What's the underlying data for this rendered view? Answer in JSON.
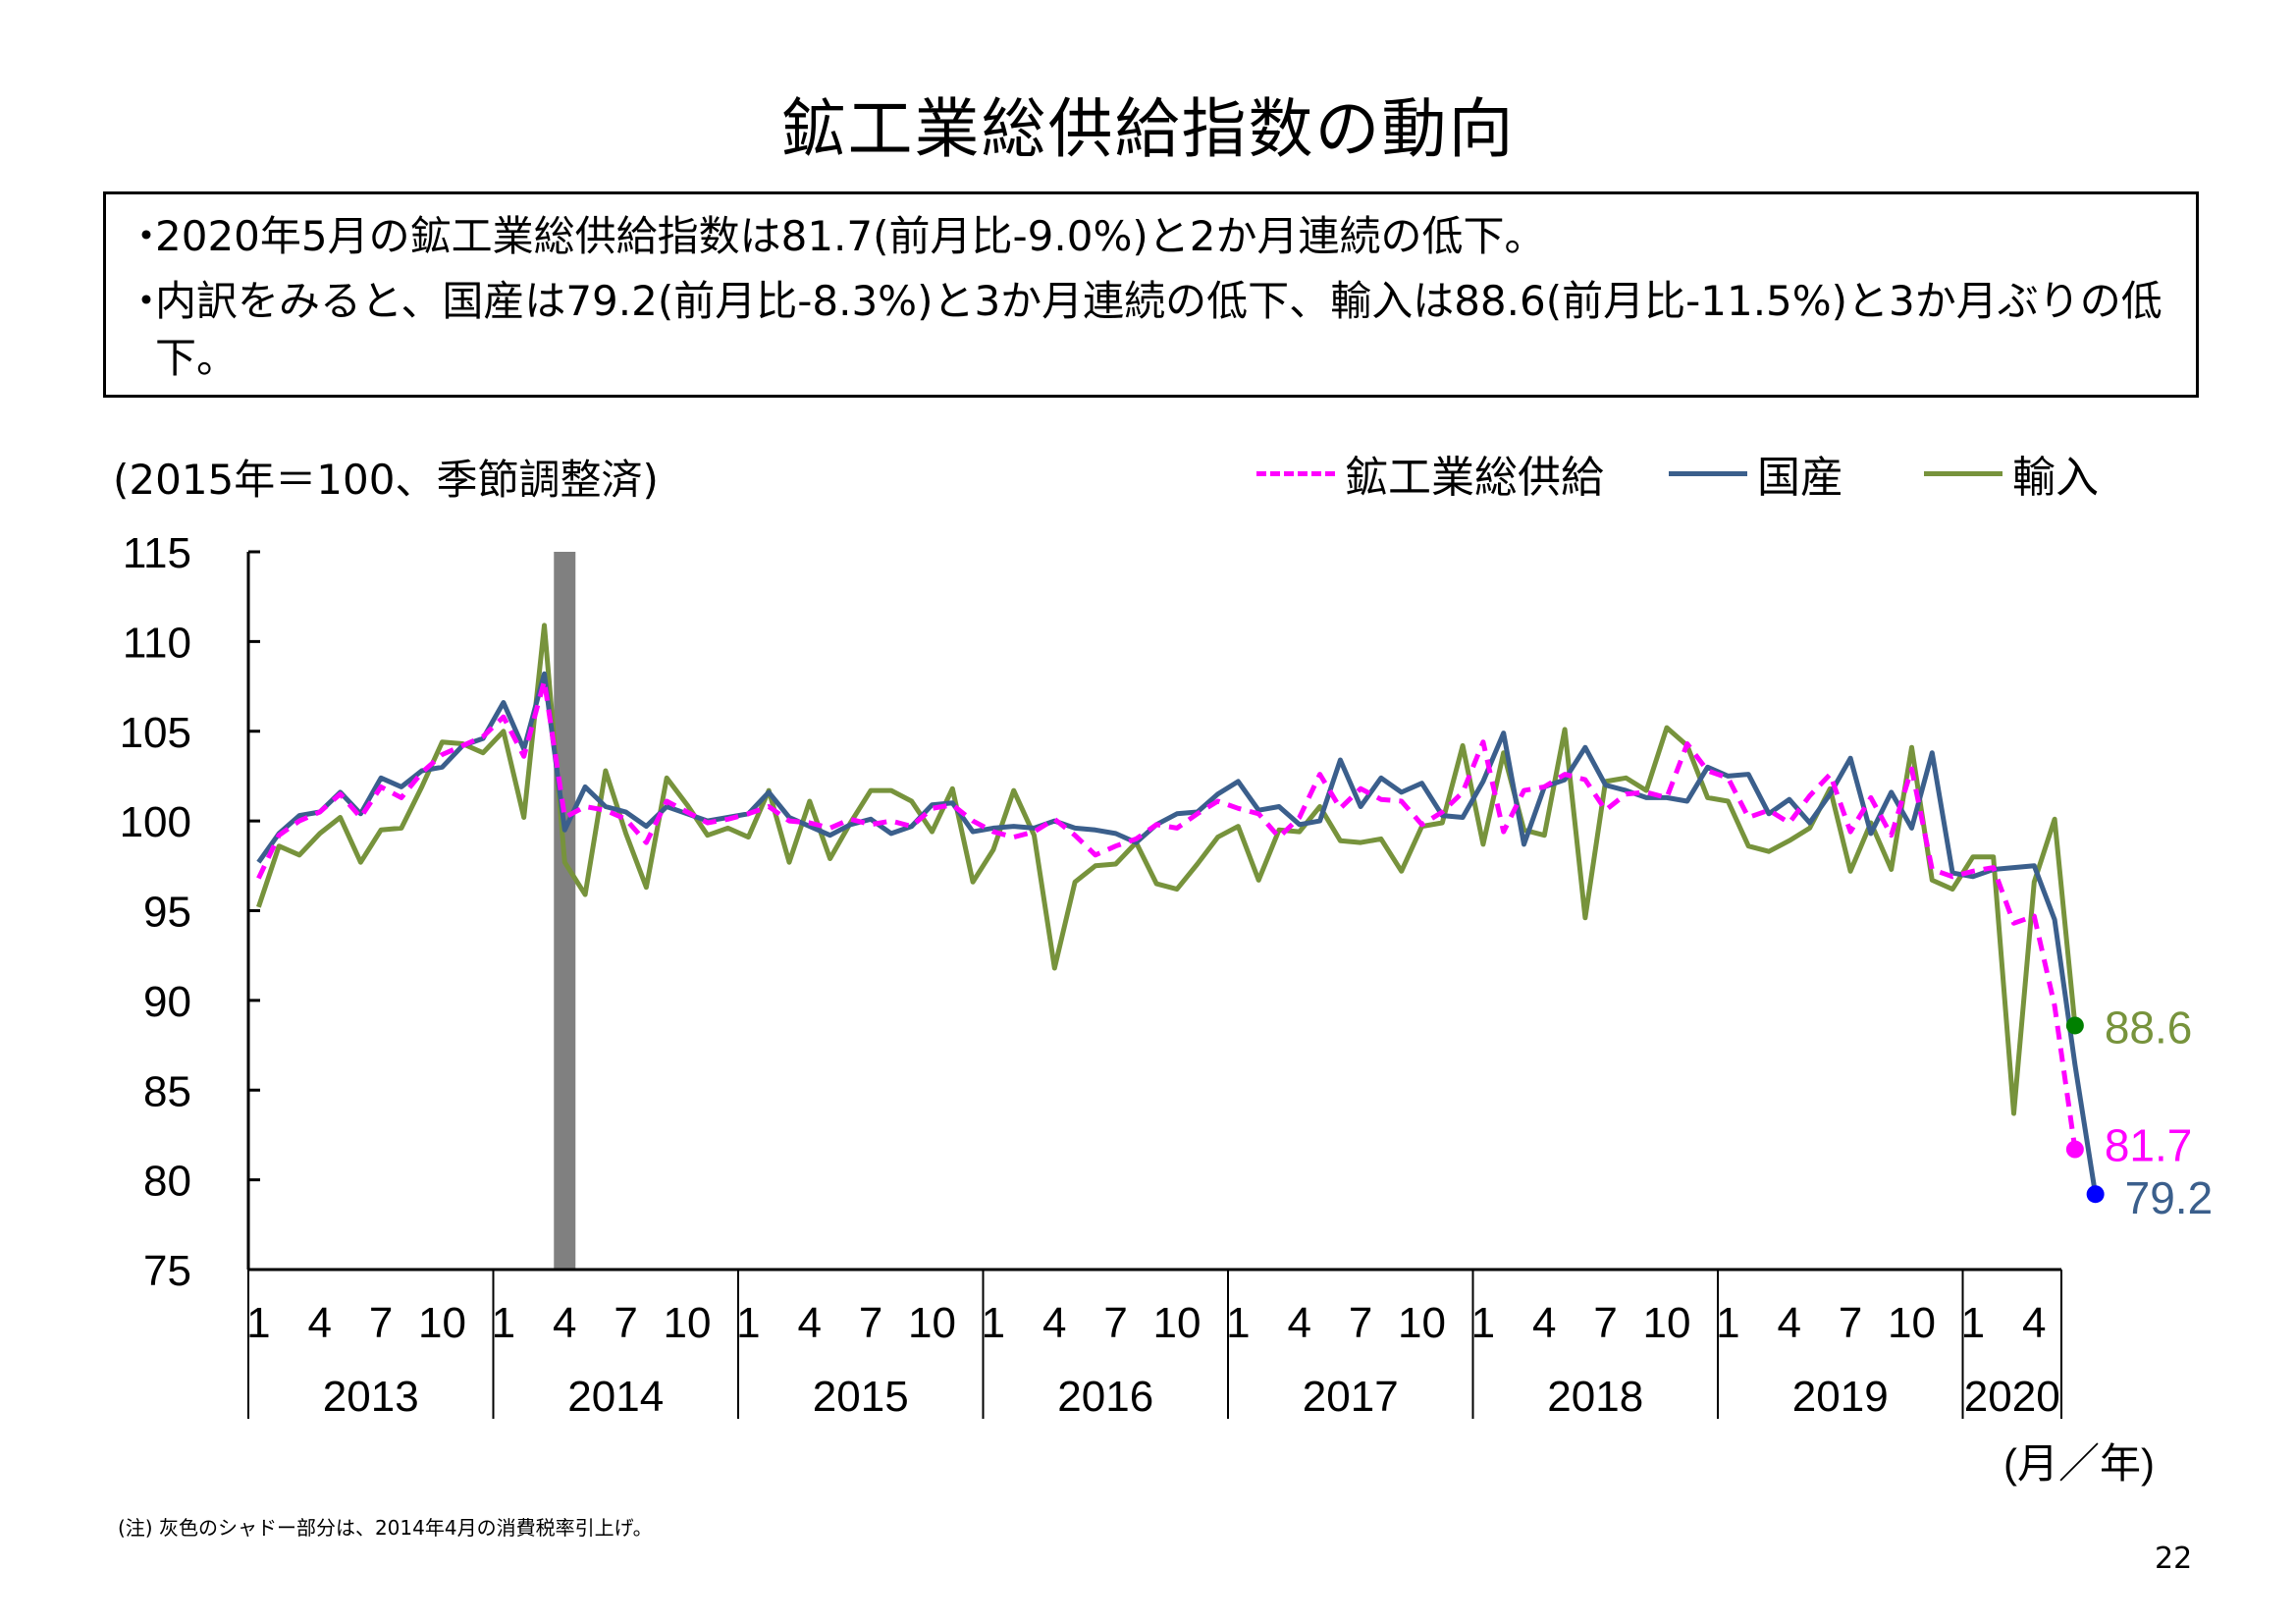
{
  "title": "鉱工業総供給指数の動向",
  "summary": [
    "2020年5月の鉱工業総供給指数は81.7(前月比-9.0%)と2か月連続の低下。",
    "内訳をみると、国産は79.2(前月比-8.3%)と3か月連続の低下、輸入は88.6(前月比-11.5%)と3か月ぶりの低下。"
  ],
  "bullet_mark": "・",
  "unit_note": "(2015年＝100、季節調整済)",
  "axis_unit": "(月／年)",
  "footnote": "(注) 灰色のシャドー部分は、2014年4月の消費税率引上げ。",
  "page_number": "22",
  "colors": {
    "total": "#ff00ff",
    "domestic": "#3b5f8c",
    "import": "#77933c",
    "domestic_point": "#0000ff",
    "import_point": "#008000",
    "shade": "#808080"
  },
  "chart_data": {
    "type": "line",
    "title": "",
    "ylim": [
      75,
      115
    ],
    "yticks": [
      "115",
      "110",
      "105",
      "100",
      "95",
      "90",
      "85",
      "80",
      "75"
    ],
    "month_ticks": [
      "1",
      "4",
      "7",
      "10"
    ],
    "month_ticks_last": [
      "1",
      "4"
    ],
    "years": [
      "2013",
      "2014",
      "2015",
      "2016",
      "2017",
      "2018",
      "2019",
      "2020"
    ],
    "x_start": "2013-01",
    "x_end": "2020-05",
    "shade_period": "2014-04",
    "end_labels": {
      "total": "81.7",
      "domestic": "79.2",
      "import": "88.6"
    },
    "series": [
      {
        "key": "total",
        "name": "鉱工業総供給",
        "values": [
          96.8,
          99.2,
          100,
          100.5,
          101.5,
          100.2,
          101.9,
          101.3,
          102.7,
          103.7,
          104.2,
          104.7,
          105.8,
          103.6,
          107.8,
          100.2,
          100.8,
          100.6,
          100.1,
          98.8,
          101.1,
          100.5,
          99.9,
          100.1,
          100.4,
          100.8,
          100,
          99.9,
          99.6,
          100.1,
          99.8,
          100,
          99.7,
          100.7,
          100.9,
          100,
          99.4,
          99.1,
          99.4,
          100.1,
          99.2,
          98.1,
          98.6,
          99,
          99.8,
          99.6,
          100.4,
          101.1,
          100.7,
          100.4,
          99.1,
          100.2,
          102.6,
          100.7,
          101.8,
          101.2,
          101.1,
          99.8,
          100.5,
          101.6,
          104.4,
          99.4,
          101.7,
          101.9,
          102.6,
          102.3,
          100.6,
          101.5,
          101.6,
          101.3,
          104.3,
          102.8,
          102.4,
          100.2,
          100.6,
          99.9,
          101.4,
          102.6,
          99.4,
          101.3,
          99.2,
          102.9,
          97.3,
          96.9,
          97.2,
          97.4,
          94.3,
          94.7,
          89.7,
          81.7
        ]
      },
      {
        "key": "domestic",
        "name": "国産",
        "values": [
          97.7,
          99.3,
          100.3,
          100.5,
          101.6,
          100.4,
          102.4,
          101.9,
          102.8,
          103,
          104.2,
          104.6,
          106.6,
          104,
          108.2,
          99.5,
          101.9,
          100.8,
          100.5,
          99.7,
          100.8,
          100.4,
          100,
          100.2,
          100.4,
          101.6,
          100.2,
          99.7,
          99.2,
          99.8,
          100.1,
          99.3,
          99.7,
          100.9,
          101,
          99.4,
          99.6,
          99.7,
          99.6,
          100,
          99.6,
          99.5,
          99.3,
          98.8,
          99.8,
          100.4,
          100.5,
          101.5,
          102.2,
          100.6,
          100.8,
          99.8,
          100,
          103.4,
          100.8,
          102.4,
          101.6,
          102.1,
          100.3,
          100.2,
          102.2,
          104.9,
          98.7,
          101.9,
          102.3,
          104.1,
          102,
          101.7,
          101.3,
          101.3,
          101.1,
          103,
          102.5,
          102.6,
          100.4,
          101.2,
          99.9,
          101.5,
          103.5,
          99.3,
          101.6,
          99.6,
          103.8,
          97.1,
          96.9,
          97.3,
          97.4,
          97.5,
          94.5,
          86.4,
          79.2
        ]
      },
      {
        "key": "import",
        "name": "輸入",
        "values": [
          95.2,
          98.6,
          98.1,
          99.3,
          100.2,
          97.7,
          99.5,
          99.6,
          101.9,
          104.4,
          104.3,
          103.8,
          105,
          100.2,
          110.9,
          97.7,
          95.9,
          102.8,
          99.3,
          96.3,
          102.4,
          100.9,
          99.2,
          99.6,
          99.1,
          101.7,
          97.7,
          101.1,
          97.9,
          99.9,
          101.7,
          101.7,
          101.1,
          99.4,
          101.8,
          96.6,
          98.4,
          101.7,
          99.2,
          91.8,
          96.6,
          97.5,
          97.6,
          98.8,
          96.5,
          96.2,
          97.6,
          99.1,
          99.7,
          96.7,
          99.5,
          99.4,
          100.8,
          98.9,
          98.8,
          99,
          97.2,
          99.7,
          99.9,
          104.2,
          98.7,
          103.8,
          99.5,
          99.2,
          105.1,
          94.6,
          102.2,
          102.4,
          101.7,
          105.2,
          104.2,
          101.3,
          101.1,
          98.6,
          98.3,
          98.9,
          99.6,
          101.8,
          97.2,
          99.9,
          97.3,
          104.1,
          96.7,
          96.2,
          98,
          98,
          83.7,
          96.6,
          100.1,
          88.6
        ]
      }
    ]
  }
}
